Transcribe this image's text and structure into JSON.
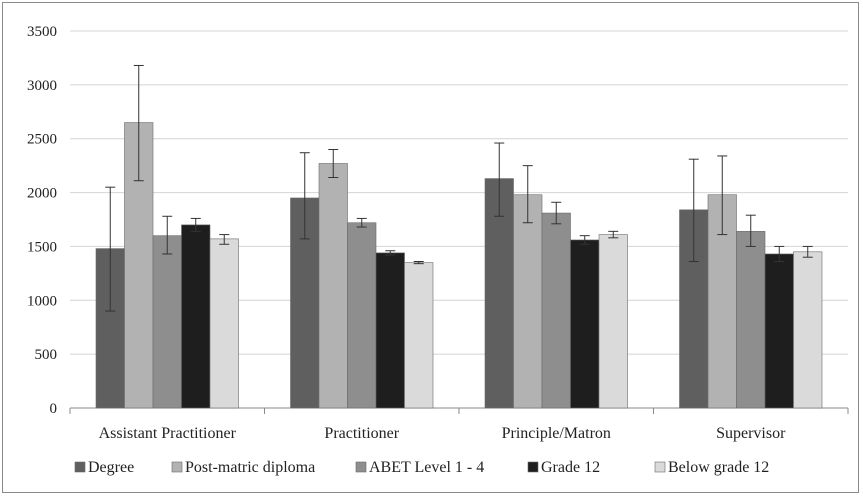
{
  "chart_data": {
    "type": "bar",
    "title": "",
    "xlabel": "",
    "ylabel": "",
    "categories": [
      "Assistant Practitioner",
      "Practitioner",
      "Principle/Matron",
      "Supervisor"
    ],
    "ylim": [
      0,
      3500
    ],
    "yticks": [
      0,
      500,
      1000,
      1500,
      2000,
      2500,
      3000,
      3500
    ],
    "grid": true,
    "legend_position": "bottom",
    "error_bars": true,
    "series": [
      {
        "name": "Degree",
        "color": "#5f5f5f",
        "values": [
          1480,
          1950,
          2130,
          1840
        ],
        "error_low": [
          900,
          1570,
          1780,
          1360
        ],
        "error_high": [
          2050,
          2370,
          2460,
          2310
        ]
      },
      {
        "name": "Post-matric diploma",
        "color": "#b2b2b2",
        "values": [
          2650,
          2270,
          1980,
          1980
        ],
        "error_low": [
          2110,
          2140,
          1720,
          1610
        ],
        "error_high": [
          3180,
          2400,
          2250,
          2340
        ]
      },
      {
        "name": "ABET Level 1 - 4",
        "color": "#8e8e8e",
        "values": [
          1600,
          1720,
          1810,
          1640
        ],
        "error_low": [
          1430,
          1680,
          1710,
          1500
        ],
        "error_high": [
          1780,
          1760,
          1910,
          1790
        ]
      },
      {
        "name": "Grade 12",
        "color": "#1e1e1e",
        "values": [
          1700,
          1440,
          1560,
          1430
        ],
        "error_low": [
          1640,
          1420,
          1520,
          1360
        ],
        "error_high": [
          1760,
          1460,
          1600,
          1500
        ]
      },
      {
        "name": "Below grade 12",
        "color": "#dadada",
        "values": [
          1570,
          1350,
          1610,
          1450
        ],
        "error_low": [
          1520,
          1340,
          1580,
          1400
        ],
        "error_high": [
          1610,
          1360,
          1640,
          1500
        ]
      }
    ]
  }
}
